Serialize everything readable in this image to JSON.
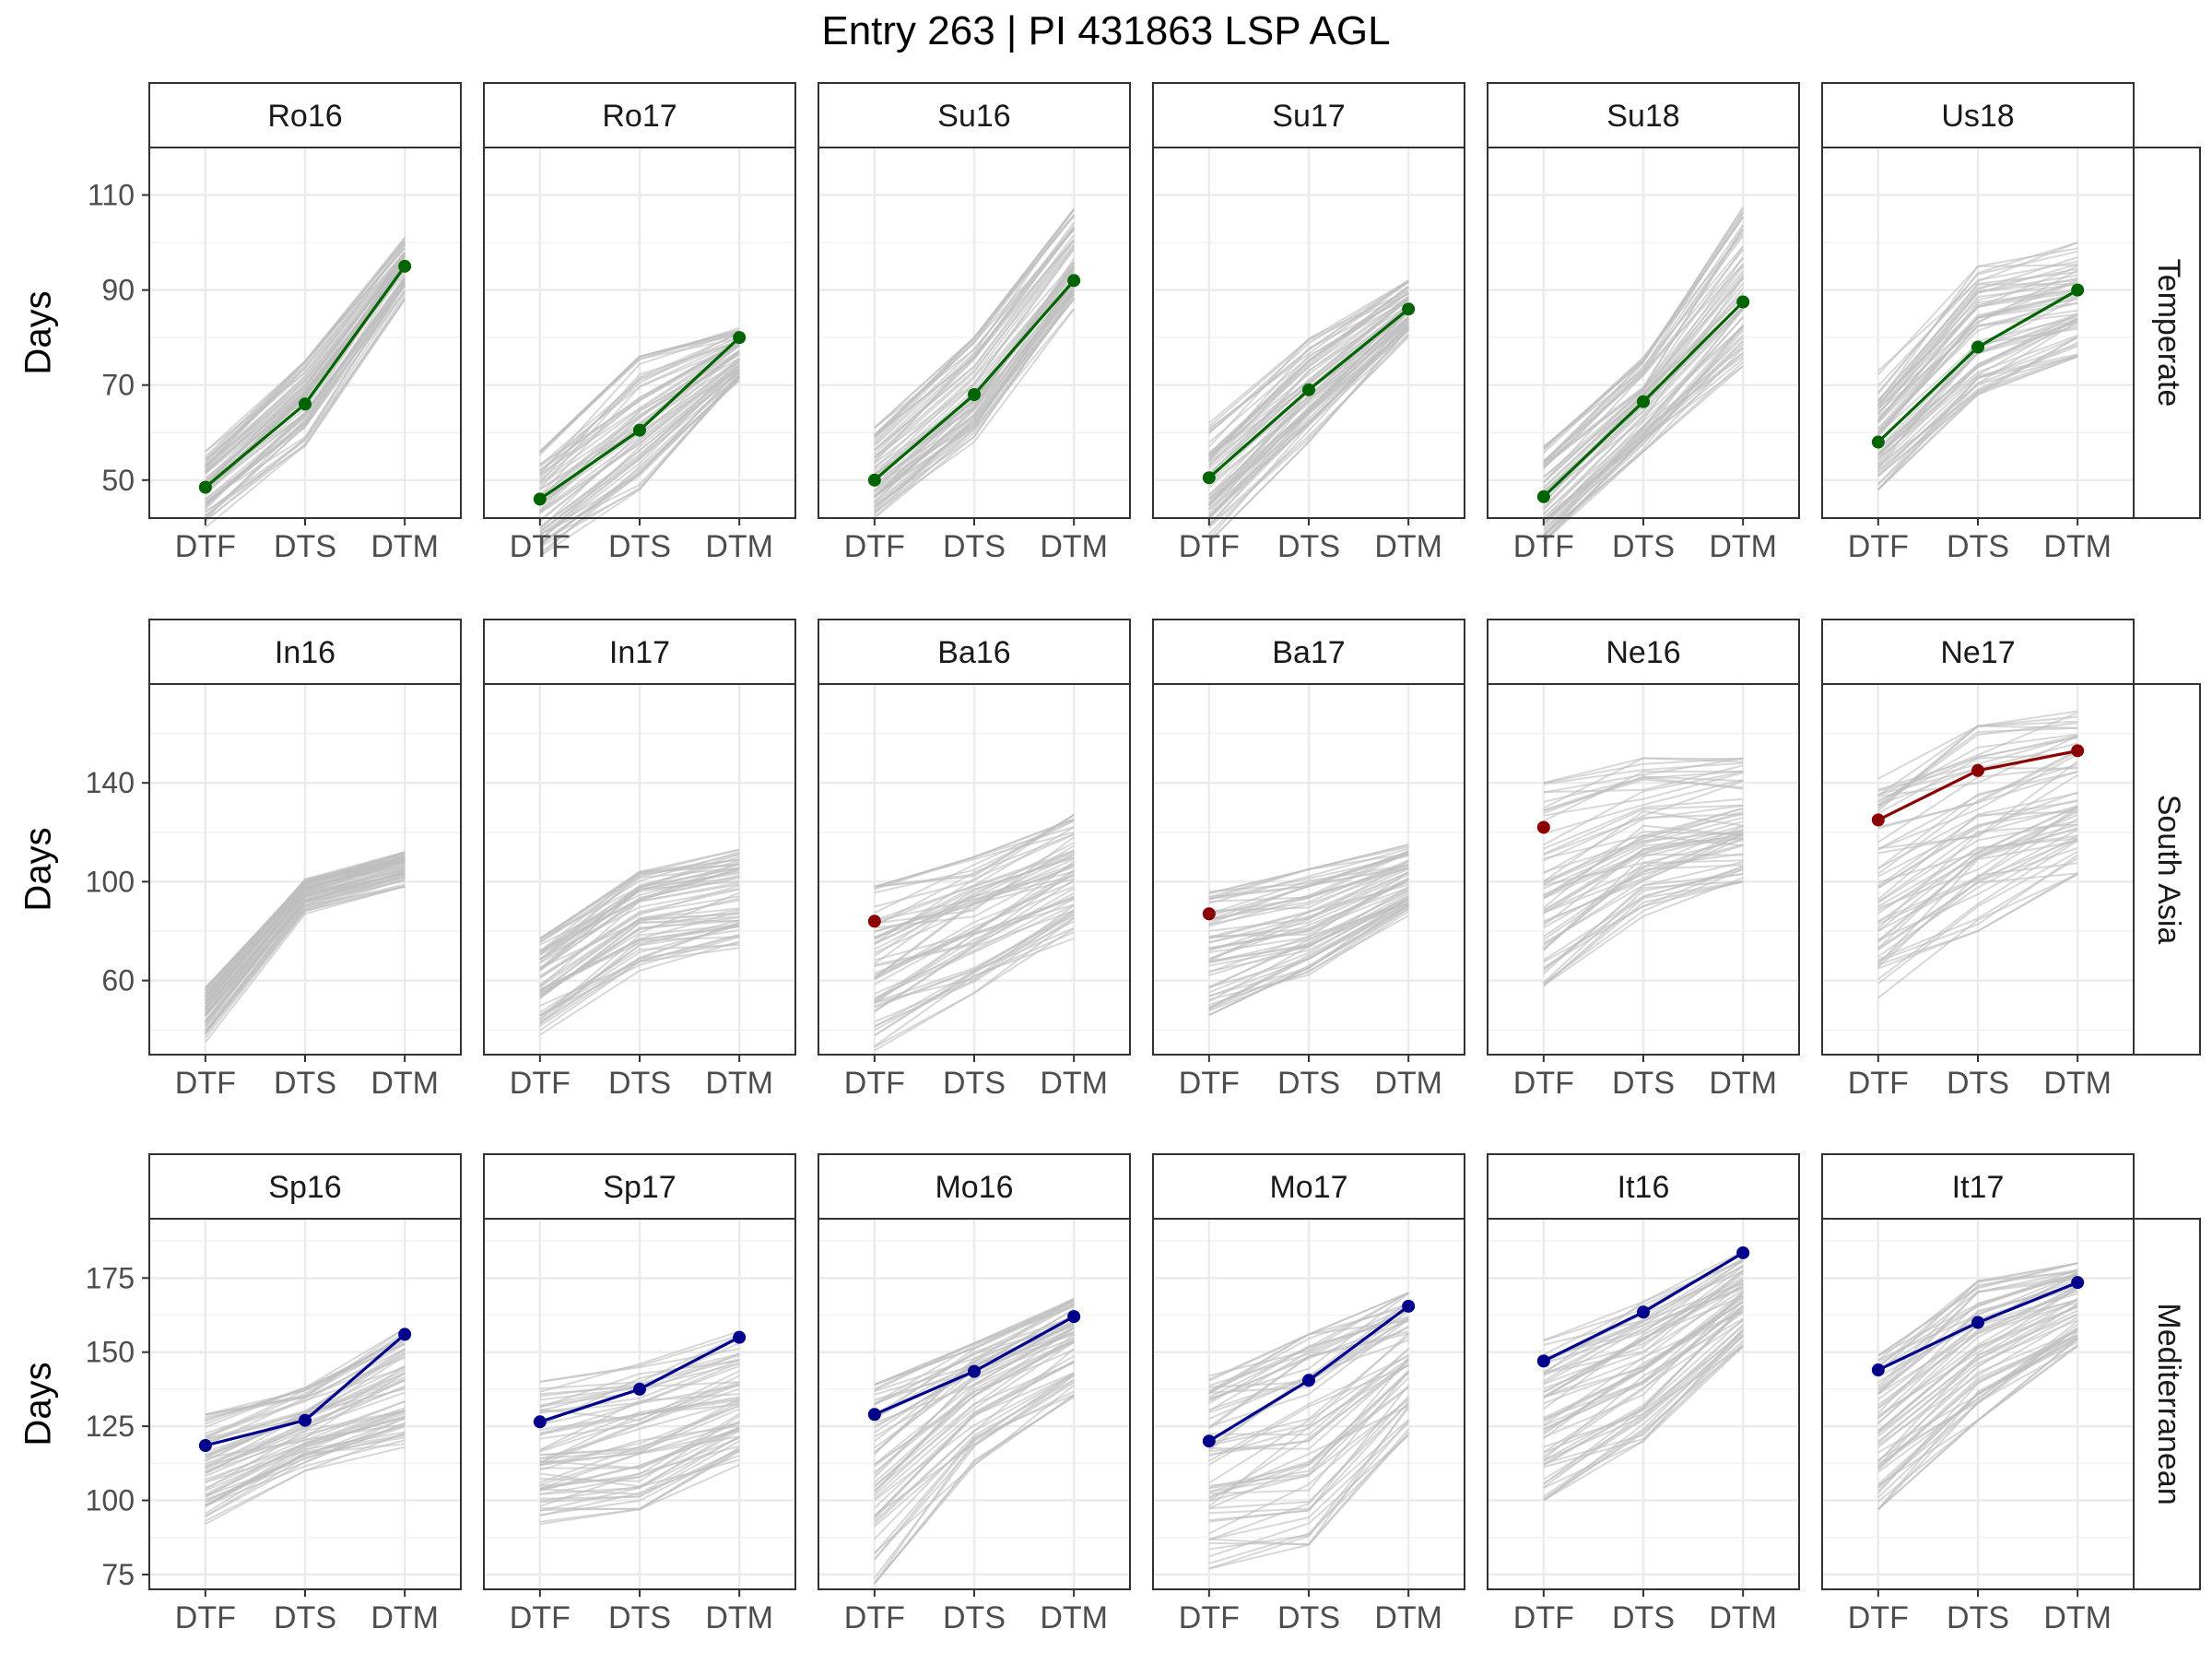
{
  "chart_data": {
    "type": "line",
    "title": "Entry 263 | PI 431863 LSP AGL",
    "ylabel": "Days",
    "xlabel": "",
    "x_categories": [
      "DTF",
      "DTS",
      "DTM"
    ],
    "grid": true,
    "background_series_color": "#bebebe",
    "rows": [
      {
        "name": "Temperate",
        "color": "#006400",
        "ylim": [
          42,
          120
        ],
        "yticks": [
          50,
          70,
          90,
          110
        ],
        "panels": [
          {
            "name": "Ro16",
            "values": [
              48.5,
              66,
              95
            ],
            "band_low": [
              40,
              57,
              88
            ],
            "band_high": [
              56,
              75,
              101
            ]
          },
          {
            "name": "Ro17",
            "values": [
              46,
              60.5,
              80
            ],
            "band_low": [
              34,
              48,
              71
            ],
            "band_high": [
              56,
              76,
              82
            ]
          },
          {
            "name": "Su16",
            "values": [
              50,
              68,
              92
            ],
            "band_low": [
              42,
              58,
              86
            ],
            "band_high": [
              61,
              80,
              107
            ]
          },
          {
            "name": "Su17",
            "values": [
              50.5,
              69,
              86
            ],
            "band_low": [
              37,
              58,
              80
            ],
            "band_high": [
              62,
              80,
              92
            ]
          },
          {
            "name": "Su18",
            "values": [
              46.5,
              66.5,
              87.5
            ],
            "band_low": [
              37,
              56,
              74
            ],
            "band_high": [
              57,
              77,
              108
            ]
          },
          {
            "name": "Us18",
            "values": [
              58,
              78,
              90
            ],
            "band_low": [
              48,
              68,
              76
            ],
            "band_high": [
              73,
              96,
              100
            ]
          }
        ]
      },
      {
        "name": "South Asia",
        "color": "#8b0000",
        "ylim": [
          30,
          180
        ],
        "yticks": [
          60,
          100,
          140
        ],
        "panels": [
          {
            "name": "In16",
            "values": [],
            "band_low": [
              35,
              87,
              98
            ],
            "band_high": [
              57,
              101,
              112
            ]
          },
          {
            "name": "In17",
            "values": [],
            "band_low": [
              38,
              64,
              72
            ],
            "band_high": [
              77,
              104,
              113
            ]
          },
          {
            "name": "Ba16",
            "values": [
              84
            ],
            "band_low": [
              31,
              55,
              77
            ],
            "band_high": [
              98,
              110,
              127
            ]
          },
          {
            "name": "Ba17",
            "values": [
              87
            ],
            "band_low": [
              46,
              60,
              86
            ],
            "band_high": [
              96,
              105,
              115
            ]
          },
          {
            "name": "Ne16",
            "values": [
              122
            ],
            "band_low": [
              58,
              86,
              100
            ],
            "band_high": [
              140,
              150,
              150
            ]
          },
          {
            "name": "Ne17",
            "values": [
              125,
              145,
              153
            ],
            "band_low": [
              53,
              80,
              103
            ],
            "band_high": [
              142,
              163,
              169
            ]
          }
        ]
      },
      {
        "name": "Mediterranean",
        "color": "#00008b",
        "ylim": [
          70,
          195
        ],
        "yticks": [
          75,
          100,
          125,
          150,
          175
        ],
        "panels": [
          {
            "name": "Sp16",
            "values": [
              118.5,
              127,
              156
            ],
            "band_low": [
              92,
              110,
              118
            ],
            "band_high": [
              129,
              138,
              158
            ]
          },
          {
            "name": "Sp17",
            "values": [
              126.5,
              137.5,
              155
            ],
            "band_low": [
              92,
              97,
              112
            ],
            "band_high": [
              140,
              146,
              157
            ]
          },
          {
            "name": "Mo16",
            "values": [
              129,
              143.5,
              162
            ],
            "band_low": [
              72,
              112,
              135
            ],
            "band_high": [
              139,
              153,
              168
            ]
          },
          {
            "name": "Mo17",
            "values": [
              120,
              140.5,
              165.5
            ],
            "band_low": [
              77,
              85,
              122
            ],
            "band_high": [
              142,
              156,
              170
            ]
          },
          {
            "name": "It16",
            "values": [
              147,
              163.5,
              183.5
            ],
            "band_low": [
              100,
              120,
              152
            ],
            "band_high": [
              154,
              167,
              184
            ]
          },
          {
            "name": "It17",
            "values": [
              144,
              160,
              173.5
            ],
            "band_low": [
              97,
              127,
              152
            ],
            "band_high": [
              151,
              174,
              180
            ]
          }
        ]
      }
    ]
  }
}
